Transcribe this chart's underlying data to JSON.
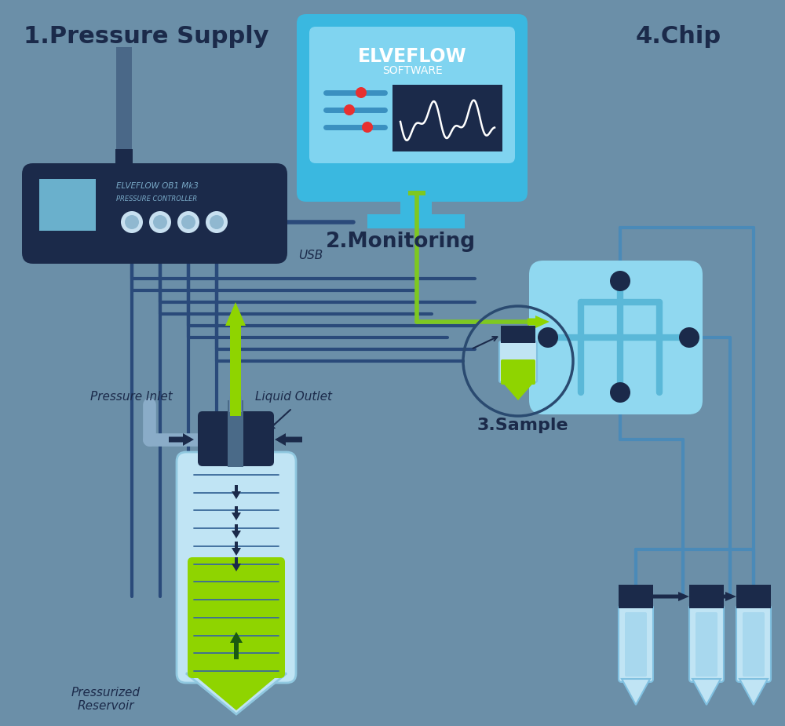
{
  "bg_color": "#6b8fa8",
  "title_1": "1.Pressure Supply",
  "title_2": "2.Monitoring",
  "title_3": "3.Sample",
  "title_4": "4.Chip",
  "label_pressure_inlet": "Pressure Inlet",
  "label_liquid_outlet": "Liquid Outlet",
  "label_pressurized_reservoir": "Pressurized\nReservoir",
  "label_elveflow_ob1": "ELVEFLOW OB1 Mk3",
  "label_pressure_controller": "PRESSURE CONTROLLER",
  "label_usb": "USB",
  "dark_navy": "#1b2a4a",
  "medium_navy": "#253558",
  "light_screen": "#6ab0cc",
  "chip_blue": "#5bbfdb",
  "chip_light": "#90d8f0",
  "chip_medium": "#5ab8d8",
  "green_line": "#7ec820",
  "bright_green": "#8fd400",
  "tube_light_blue": "#c0e4f4",
  "tube_inner_blue": "#a8d8ee",
  "connector_dark": "#1b2a4a",
  "white": "#ffffff",
  "red_dot": "#e83030",
  "screen_dark": "#1b2a4a",
  "monitor_frame": "#3ab8e0",
  "monitor_light": "#80d4f0",
  "text_dark": "#1b2a4a",
  "line_med": "#2a5080",
  "line_light": "#4a8ab8",
  "wires_color": "#2a4a7a"
}
